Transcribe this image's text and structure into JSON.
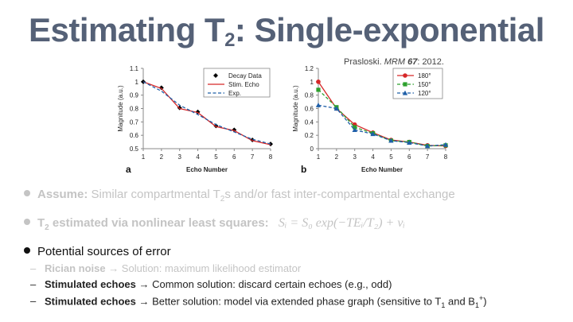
{
  "slide": {
    "title_main": "Estimating T",
    "title_sub": "2",
    "title_rest": ": Single-exponential",
    "citation_author": "Prasloski. ",
    "citation_journal": "MRM ",
    "citation_volume": "67",
    "citation_year": ": 2012."
  },
  "bullets": {
    "b1_bold": "Assume:",
    "b1_text": " Similar compartmental T",
    "b1_sub": "2",
    "b1_text2": "s and/or fast inter-compartmental exchange",
    "b2_bold_a": "T",
    "b2_bold_sub": "2",
    "b2_bold_b": " estimated via nonlinear least squares:",
    "b2_formula": "Sᵢ = S₀ exp(−TEᵢ/T₂) + νᵢ",
    "b3_text": "Potential sources of error",
    "s1_bold": "Rician noise",
    "s1_text": " → Solution: maximum likelihood estimator",
    "s2_bold": "Stimulated echoes",
    "s2_text": " → Common solution: discard certain echoes (e.g., odd)",
    "s3_bold": "Stimulated echoes",
    "s3_text": " → Better solution: model via extended phase graph (sensitive to T",
    "s3_sub1": "1",
    "s3_mid": " and B",
    "s3_sub2": "1",
    "s3_sup": "+",
    "s3_end": ")"
  },
  "chart_data": [
    {
      "type": "line",
      "panel_label": "a",
      "xlabel": "Echo Number",
      "ylabel": "Magnitude (a.u.)",
      "x": [
        1,
        2,
        3,
        4,
        5,
        6,
        7,
        8
      ],
      "ylim": [
        0.5,
        1.1
      ],
      "yticks": [
        "0.5",
        "0.6",
        "0.7",
        "0.8",
        "0.9",
        "1",
        "1.1"
      ],
      "legend_position": "top-right",
      "series": [
        {
          "name": "Decay Data",
          "color": "#000000",
          "style": "markers",
          "values": [
            1.0,
            0.955,
            0.805,
            0.775,
            0.67,
            0.64,
            0.565,
            0.535
          ]
        },
        {
          "name": "Stim. Echo",
          "color": "#d62728",
          "style": "solid",
          "values": [
            1.0,
            0.95,
            0.8,
            0.77,
            0.665,
            0.635,
            0.56,
            0.53
          ]
        },
        {
          "name": "Exp.",
          "color": "#1f5fa8",
          "style": "dashed",
          "values": [
            1.0,
            0.93,
            0.825,
            0.755,
            0.68,
            0.625,
            0.57,
            0.535
          ]
        }
      ]
    },
    {
      "type": "line",
      "panel_label": "b",
      "xlabel": "Echo Number",
      "ylabel": "Magnitude (a.u.)",
      "x": [
        1,
        2,
        3,
        4,
        5,
        6,
        7,
        8
      ],
      "ylim": [
        0,
        1.2
      ],
      "yticks": [
        "0",
        "0.2",
        "0.4",
        "0.6",
        "0.8",
        "1",
        "1.2"
      ],
      "legend_position": "top-right",
      "series": [
        {
          "name": "180°",
          "color": "#d62728",
          "style": "solid",
          "values": [
            1.0,
            0.6,
            0.36,
            0.24,
            0.13,
            0.1,
            0.05,
            0.04
          ]
        },
        {
          "name": "150°",
          "color": "#2ca02c",
          "style": "dashed",
          "values": [
            0.88,
            0.62,
            0.32,
            0.23,
            0.12,
            0.1,
            0.04,
            0.05
          ]
        },
        {
          "name": "120°",
          "color": "#1f5fa8",
          "style": "dashed",
          "values": [
            0.65,
            0.6,
            0.28,
            0.22,
            0.12,
            0.09,
            0.04,
            0.06
          ]
        }
      ]
    }
  ]
}
